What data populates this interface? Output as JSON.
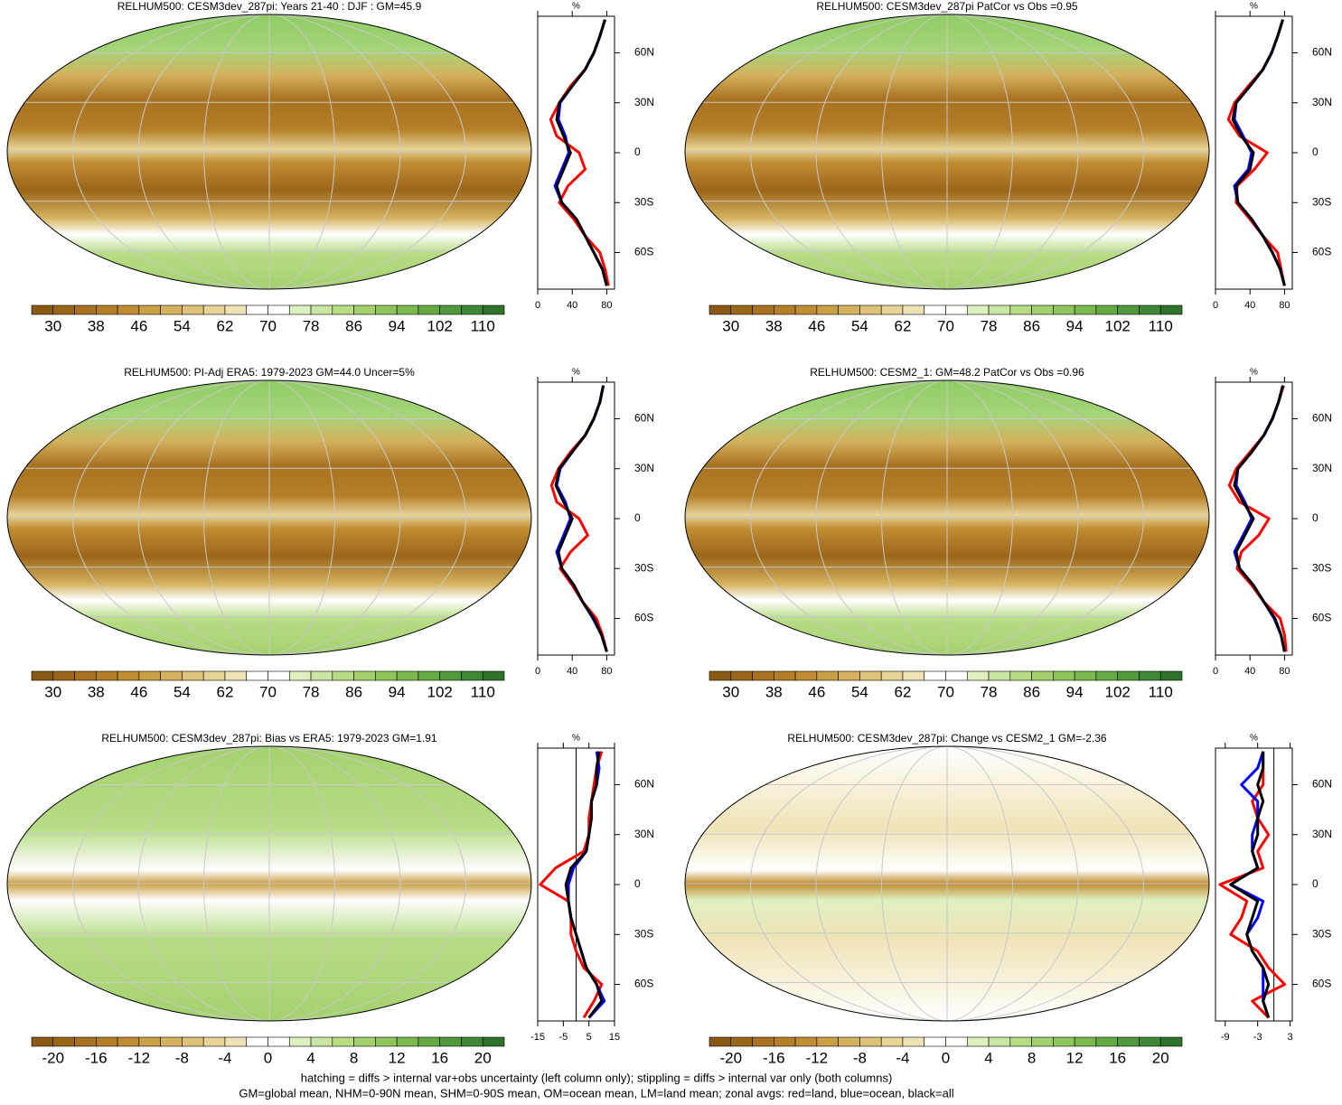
{
  "chart_data": [
    {
      "type": "map",
      "title": "RELHUM500: CESM3dev_287pi: Years 21-40 : DJF : GM=45.9",
      "clim": [
        26,
        114
      ],
      "cticks": [
        30,
        38,
        46,
        54,
        62,
        70,
        78,
        86,
        94,
        102,
        110
      ],
      "colors": [
        "#8a5a14",
        "#9b661a",
        "#a87220",
        "#b47f28",
        "#c08d33",
        "#caa046",
        "#d4b25e",
        "#ddc47a",
        "#e6d497",
        "#efe3b6",
        "#ffffff",
        "#ffffff",
        "#dff0c0",
        "#cbe6a2",
        "#b8dc86",
        "#a4d16e",
        "#90c55c",
        "#7bb84e",
        "#66aa44",
        "#51993b",
        "#3e8734",
        "#2e722c"
      ]
    },
    {
      "type": "line",
      "title": "%",
      "y": [
        -80,
        -70,
        -60,
        -50,
        -40,
        -30,
        -20,
        -10,
        0,
        10,
        20,
        30,
        40,
        50,
        60,
        70,
        80
      ],
      "ylim": [
        -82,
        82
      ],
      "yticks": [
        {
          "value": 60,
          "label": "60N"
        },
        {
          "value": 30,
          "label": "30N"
        },
        0,
        {
          "value": -30,
          "label": "30S"
        },
        {
          "value": -60,
          "label": "60S"
        }
      ],
      "xlim": [
        0,
        89
      ],
      "xticks": [
        0,
        40,
        80
      ],
      "series": [
        {
          "color": "#ff0000",
          "values": [
            82,
            78,
            72,
            55,
            42,
            25,
            35,
            55,
            48,
            22,
            15,
            25,
            38,
            55,
            65,
            72,
            78
          ]
        },
        {
          "color": "#0000ff",
          "values": [
            80,
            75,
            65,
            55,
            45,
            28,
            20,
            28,
            36,
            32,
            24,
            26,
            40,
            55,
            65,
            72,
            78
          ]
        },
        {
          "color": "#000000",
          "values": [
            80,
            75,
            65,
            55,
            45,
            28,
            22,
            30,
            38,
            30,
            22,
            25,
            40,
            55,
            65,
            72,
            78
          ]
        }
      ]
    },
    {
      "type": "map",
      "title": "RELHUM500: CESM3dev_287pi PatCor vs Obs =0.95",
      "clim": [
        26,
        114
      ],
      "cticks": [
        30,
        38,
        46,
        54,
        62,
        70,
        78,
        86,
        94,
        102,
        110
      ],
      "colors": [
        "#8a5a14",
        "#9b661a",
        "#a87220",
        "#b47f28",
        "#c08d33",
        "#caa046",
        "#d4b25e",
        "#ddc47a",
        "#e6d497",
        "#efe3b6",
        "#ffffff",
        "#ffffff",
        "#dff0c0",
        "#cbe6a2",
        "#b8dc86",
        "#a4d16e",
        "#90c55c",
        "#7bb84e",
        "#66aa44",
        "#51993b",
        "#3e8734",
        "#2e722c"
      ]
    },
    {
      "type": "line",
      "title": "%",
      "y": [
        -80,
        -70,
        -60,
        -50,
        -40,
        -30,
        -20,
        -10,
        0,
        10,
        20,
        30,
        40,
        50,
        60,
        70,
        80
      ],
      "ylim": [
        -82,
        82
      ],
      "yticks": [
        {
          "value": 60,
          "label": "60N"
        },
        {
          "value": 30,
          "label": "30N"
        },
        0,
        {
          "value": -30,
          "label": "30S"
        },
        {
          "value": -60,
          "label": "60S"
        }
      ],
      "xlim": [
        0,
        89
      ],
      "xticks": [
        0,
        40,
        80
      ],
      "series": [
        {
          "color": "#ff0000",
          "values": [
            80,
            76,
            72,
            55,
            40,
            24,
            25,
            45,
            60,
            28,
            15,
            22,
            38,
            55,
            65,
            72,
            78
          ]
        },
        {
          "color": "#0000ff",
          "values": [
            80,
            75,
            66,
            55,
            42,
            26,
            22,
            38,
            42,
            32,
            22,
            24,
            40,
            55,
            65,
            72,
            78
          ]
        },
        {
          "color": "#000000",
          "values": [
            80,
            75,
            66,
            55,
            42,
            26,
            24,
            40,
            44,
            30,
            20,
            24,
            40,
            55,
            65,
            72,
            78
          ]
        }
      ]
    },
    {
      "type": "map",
      "title": "RELHUM500: PI-Adj ERA5: 1979-2023 GM=44.0 Uncer=5%",
      "clim": [
        26,
        114
      ],
      "cticks": [
        30,
        38,
        46,
        54,
        62,
        70,
        78,
        86,
        94,
        102,
        110
      ],
      "colors": [
        "#8a5a14",
        "#9b661a",
        "#a87220",
        "#b47f28",
        "#c08d33",
        "#caa046",
        "#d4b25e",
        "#ddc47a",
        "#e6d497",
        "#efe3b6",
        "#ffffff",
        "#ffffff",
        "#dff0c0",
        "#cbe6a2",
        "#b8dc86",
        "#a4d16e",
        "#90c55c",
        "#7bb84e",
        "#66aa44",
        "#51993b",
        "#3e8734",
        "#2e722c"
      ]
    },
    {
      "type": "line",
      "title": "%",
      "y": [
        -80,
        -70,
        -60,
        -50,
        -40,
        -30,
        -20,
        -10,
        0,
        10,
        20,
        30,
        40,
        50,
        60,
        70,
        80
      ],
      "ylim": [
        -82,
        82
      ],
      "yticks": [
        {
          "value": 60,
          "label": "60N"
        },
        {
          "value": 30,
          "label": "30N"
        },
        0,
        {
          "value": -30,
          "label": "30S"
        },
        {
          "value": -60,
          "label": "60S"
        }
      ],
      "xlim": [
        0,
        89
      ],
      "xticks": [
        0,
        40,
        80
      ],
      "series": [
        {
          "color": "#ff0000",
          "values": [
            80,
            75,
            68,
            52,
            40,
            26,
            38,
            58,
            48,
            22,
            16,
            24,
            38,
            55,
            65,
            72,
            76
          ]
        },
        {
          "color": "#0000ff",
          "values": [
            80,
            74,
            64,
            52,
            42,
            28,
            22,
            30,
            38,
            32,
            22,
            26,
            40,
            55,
            65,
            72,
            76
          ]
        },
        {
          "color": "#000000",
          "values": [
            80,
            74,
            65,
            52,
            42,
            28,
            24,
            32,
            40,
            30,
            21,
            25,
            40,
            55,
            65,
            72,
            76
          ]
        }
      ]
    },
    {
      "type": "map",
      "title": "RELHUM500: CESM2_1: GM=48.2 PatCor vs Obs =0.96",
      "clim": [
        26,
        114
      ],
      "cticks": [
        30,
        38,
        46,
        54,
        62,
        70,
        78,
        86,
        94,
        102,
        110
      ],
      "colors": [
        "#8a5a14",
        "#9b661a",
        "#a87220",
        "#b47f28",
        "#c08d33",
        "#caa046",
        "#d4b25e",
        "#ddc47a",
        "#e6d497",
        "#efe3b6",
        "#ffffff",
        "#ffffff",
        "#dff0c0",
        "#cbe6a2",
        "#b8dc86",
        "#a4d16e",
        "#90c55c",
        "#7bb84e",
        "#66aa44",
        "#51993b",
        "#3e8734",
        "#2e722c"
      ]
    },
    {
      "type": "line",
      "title": "%",
      "y": [
        -80,
        -70,
        -60,
        -50,
        -40,
        -30,
        -20,
        -10,
        0,
        10,
        20,
        30,
        40,
        50,
        60,
        70,
        80
      ],
      "ylim": [
        -82,
        82
      ],
      "yticks": [
        {
          "value": 60,
          "label": "60N"
        },
        {
          "value": 30,
          "label": "30N"
        },
        0,
        {
          "value": -30,
          "label": "30S"
        },
        {
          "value": -60,
          "label": "60S"
        }
      ],
      "xlim": [
        0,
        89
      ],
      "xticks": [
        0,
        40,
        80
      ],
      "series": [
        {
          "color": "#ff0000",
          "values": [
            82,
            80,
            75,
            56,
            42,
            25,
            30,
            50,
            62,
            28,
            16,
            24,
            40,
            56,
            66,
            73,
            79
          ]
        },
        {
          "color": "#0000ff",
          "values": [
            80,
            76,
            68,
            56,
            44,
            28,
            22,
            32,
            42,
            34,
            24,
            26,
            42,
            56,
            66,
            73,
            78
          ]
        },
        {
          "color": "#000000",
          "values": [
            80,
            76,
            69,
            56,
            44,
            28,
            24,
            34,
            44,
            32,
            22,
            26,
            42,
            56,
            66,
            73,
            78
          ]
        }
      ]
    },
    {
      "type": "map",
      "title": "RELHUM500: CESM3dev_287pi: Bias vs ERA5: 1979-2023 GM=1.91",
      "clim": [
        -22,
        22
      ],
      "cticks": [
        -20,
        -16,
        -12,
        -8,
        -4,
        0,
        4,
        8,
        12,
        16,
        20
      ],
      "colors": [
        "#8a5a14",
        "#9b661a",
        "#a87220",
        "#b47f28",
        "#c08d33",
        "#caa046",
        "#d4b25e",
        "#ddc47a",
        "#e6d497",
        "#efe3b6",
        "#ffffff",
        "#ffffff",
        "#dff0c0",
        "#cbe6a2",
        "#b8dc86",
        "#a4d16e",
        "#90c55c",
        "#7bb84e",
        "#66aa44",
        "#51993b",
        "#3e8734",
        "#2e722c"
      ]
    },
    {
      "type": "line",
      "title": "%",
      "y": [
        -80,
        -70,
        -60,
        -50,
        -40,
        -30,
        -20,
        -10,
        0,
        10,
        20,
        30,
        40,
        50,
        60,
        70,
        80
      ],
      "ylim": [
        -82,
        82
      ],
      "yticks": [
        {
          "value": 60,
          "label": "60N"
        },
        {
          "value": 30,
          "label": "30N"
        },
        0,
        {
          "value": -30,
          "label": "30S"
        },
        {
          "value": -60,
          "label": "60S"
        }
      ],
      "xlim": [
        -15,
        15
      ],
      "xticks": [
        -15,
        -5,
        5,
        15
      ],
      "series": [
        {
          "color": "#ff0000",
          "values": [
            3,
            7,
            10,
            3,
            0,
            -2,
            -2,
            -3,
            -14,
            -8,
            3,
            5,
            5,
            6,
            7,
            8,
            10
          ]
        },
        {
          "color": "#0000ff",
          "values": [
            5,
            11,
            8,
            4,
            2,
            0,
            -2,
            -3,
            -3,
            -1,
            4,
            5,
            6,
            6,
            8,
            9,
            8
          ]
        },
        {
          "color": "#000000",
          "values": [
            5,
            10,
            8,
            4,
            2,
            0,
            -2,
            -3,
            -4,
            -2,
            4,
            5,
            6,
            6,
            8,
            8,
            9
          ]
        }
      ]
    },
    {
      "type": "map",
      "title": "RELHUM500: CESM3dev_287pi: Change vs CESM2_1 GM=-2.36",
      "clim": [
        -22,
        22
      ],
      "cticks": [
        -20,
        -16,
        -12,
        -8,
        -4,
        0,
        4,
        8,
        12,
        16,
        20
      ],
      "colors": [
        "#8a5a14",
        "#9b661a",
        "#a87220",
        "#b47f28",
        "#c08d33",
        "#caa046",
        "#d4b25e",
        "#ddc47a",
        "#e6d497",
        "#efe3b6",
        "#ffffff",
        "#ffffff",
        "#dff0c0",
        "#cbe6a2",
        "#b8dc86",
        "#a4d16e",
        "#90c55c",
        "#7bb84e",
        "#66aa44",
        "#51993b",
        "#3e8734",
        "#2e722c"
      ]
    },
    {
      "type": "line",
      "title": "%",
      "y": [
        -80,
        -70,
        -60,
        -50,
        -40,
        -30,
        -20,
        -10,
        0,
        10,
        20,
        30,
        40,
        50,
        60,
        70,
        80
      ],
      "ylim": [
        -82,
        82
      ],
      "yticks": [
        {
          "value": 60,
          "label": "60N"
        },
        {
          "value": 30,
          "label": "30N"
        },
        0,
        {
          "value": -30,
          "label": "30S"
        },
        {
          "value": -60,
          "label": "60S"
        }
      ],
      "xlim": [
        -10.8,
        3.4
      ],
      "xticks": [
        -9,
        -3,
        3
      ],
      "series": [
        {
          "color": "#ff0000",
          "values": [
            -1,
            -4,
            2,
            -1,
            -3,
            -8,
            -6,
            -5,
            -10,
            -2,
            -3,
            -1,
            -3,
            -4,
            -2,
            -2,
            -2
          ]
        },
        {
          "color": "#0000ff",
          "values": [
            -1,
            -2,
            -2,
            -2,
            -4,
            -5,
            -3,
            -2,
            -8,
            -3,
            -4,
            -4,
            -3,
            -3,
            -6,
            -3,
            -2
          ]
        },
        {
          "color": "#000000",
          "values": [
            -1,
            -2,
            -1,
            -2,
            -4,
            -5,
            -4,
            -3,
            -8,
            -3,
            -4,
            -3,
            -3,
            -2,
            -3,
            -2,
            -2
          ]
        }
      ]
    }
  ],
  "footer": [
    "hatching = diffs > internal var+obs uncertainty (left column only); stippling = diffs > internal var only (both columns)",
    "GM=global mean, NHM=0-90N mean, SHM=0-90S mean, OM=ocean mean, LM=land mean; zonal avgs: red=land, blue=ocean, black=all"
  ]
}
